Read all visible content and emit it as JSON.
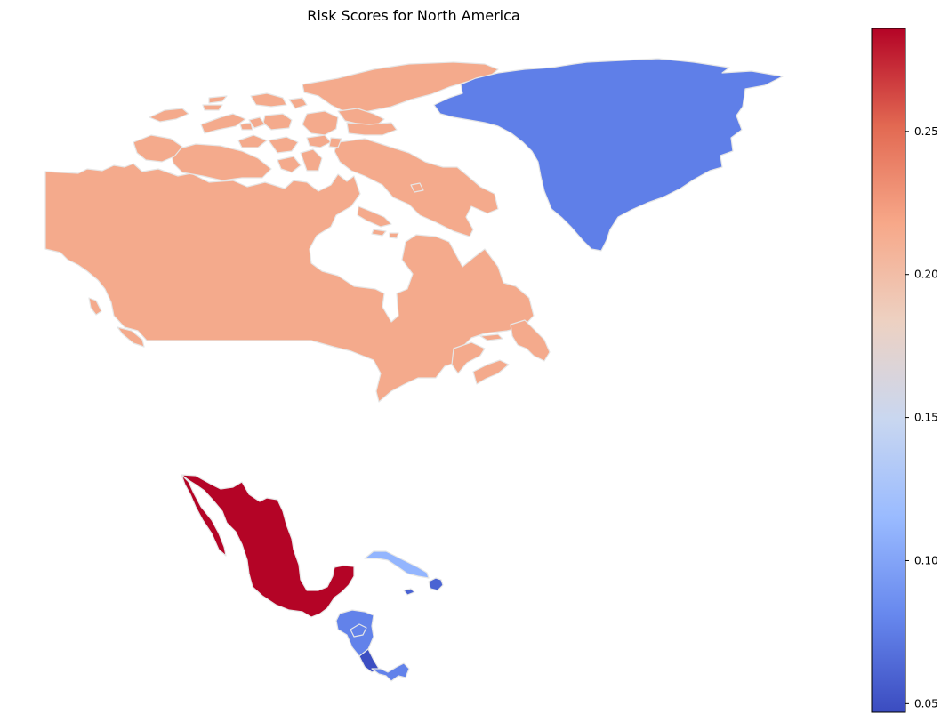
{
  "title": "Risk Scores for North America",
  "colorbar": {
    "colormap": "coolwarm",
    "min": 0.047,
    "max": 0.286,
    "ticks": [
      {
        "value": 0.05,
        "label": "0.05"
      },
      {
        "value": 0.1,
        "label": "0.10"
      },
      {
        "value": 0.15,
        "label": "0.15"
      },
      {
        "value": 0.2,
        "label": "0.20"
      },
      {
        "value": 0.25,
        "label": "0.25"
      }
    ],
    "stops": [
      "#3b4cc0",
      "#6788ee",
      "#9abbff",
      "#c9d7f0",
      "#edd1c2",
      "#f7a889",
      "#e26952",
      "#b40426"
    ]
  },
  "regions": [
    {
      "id": "canada",
      "value": 0.22,
      "color": "#f4aa8c"
    },
    {
      "id": "greenland",
      "value": 0.08,
      "color": "#5f7fe8"
    },
    {
      "id": "mexico",
      "value": 0.286,
      "color": "#b40426"
    },
    {
      "id": "cuba",
      "value": 0.11,
      "color": "#93b5fe"
    },
    {
      "id": "haiti-dr",
      "value": 0.06,
      "color": "#4a63d3"
    },
    {
      "id": "guatemala-honduras-el-salvador",
      "value": 0.08,
      "color": "#6282ea"
    },
    {
      "id": "nicaragua",
      "value": 0.05,
      "color": "#3c4ec2"
    },
    {
      "id": "panama",
      "value": 0.08,
      "color": "#6282ea"
    }
  ]
}
